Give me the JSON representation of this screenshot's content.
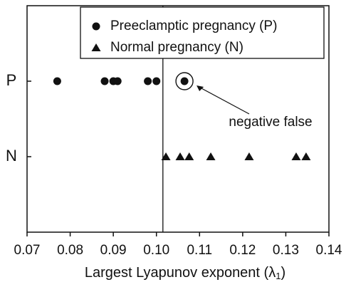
{
  "chart_data": {
    "type": "strip",
    "xlabel": [
      "Largest Lyapunov exponent (λ",
      "1",
      ")"
    ],
    "categories": [
      "P",
      "N"
    ],
    "series": [
      {
        "name": "Preeclamptic pregnancy (P)",
        "marker": "circle",
        "color": "#111111",
        "values": [
          0.077,
          0.088,
          0.09,
          0.091,
          0.098,
          0.1,
          0.1065
        ]
      },
      {
        "name": "Normal pregnancy (N)",
        "marker": "triangle",
        "color": "#111111",
        "values": [
          0.1022,
          0.1055,
          0.1076,
          0.1126,
          0.1215,
          0.1324,
          0.1347
        ]
      }
    ],
    "xlim": [
      0.07,
      0.14
    ],
    "xticks": [
      0.07,
      0.08,
      0.09,
      {
        "value": 0.1,
        "label": "0.10"
      },
      0.11,
      0.12,
      0.13,
      0.14
    ],
    "vline": 0.1015,
    "highlight": {
      "series": 0,
      "index": 6,
      "text": "negative false"
    },
    "legend": "upper right"
  }
}
